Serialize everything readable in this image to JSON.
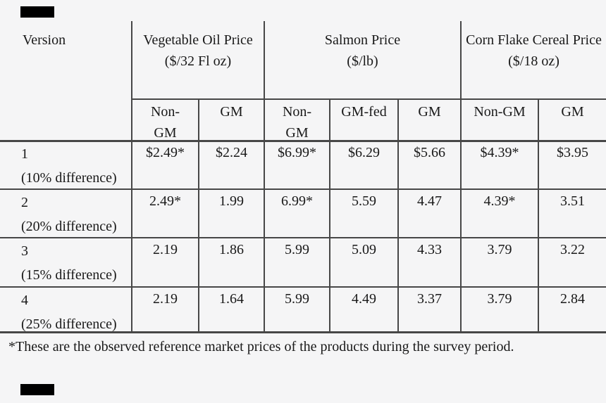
{
  "page": {
    "background": "#f5f5f6",
    "text_color": "#191919",
    "line_color": "#474747",
    "mark_color": "#000000"
  },
  "table": {
    "col_groups": [
      {
        "label": "Version",
        "unit": ""
      },
      {
        "label": "Vegetable Oil Price",
        "unit": "($/32 Fl oz)"
      },
      {
        "label": "Salmon Price",
        "unit": "($/lb)"
      },
      {
        "label": "Corn Flake Cereal Price",
        "unit": "($/18 oz)"
      }
    ],
    "sub_headers": [
      "Non-GM",
      "GM",
      "Non-GM",
      "GM-fed",
      "GM",
      "Non-GM",
      "GM"
    ],
    "rows": [
      {
        "version": "1",
        "difference": "(10% difference)",
        "values": [
          "$2.49*",
          "$2.24",
          "$6.99*",
          "$6.29",
          "$5.66",
          "$4.39*",
          "$3.95"
        ]
      },
      {
        "version": "2",
        "difference": "(20% difference)",
        "values": [
          "2.49*",
          "1.99",
          "6.99*",
          "5.59",
          "4.47",
          "4.39*",
          "3.51"
        ]
      },
      {
        "version": "3",
        "difference": "(15% difference)",
        "values": [
          "2.19",
          "1.86",
          "5.99",
          "5.09",
          "4.33",
          "3.79",
          "3.22"
        ]
      },
      {
        "version": "4",
        "difference": "(25% difference)",
        "values": [
          "2.19",
          "1.64",
          "5.99",
          "4.49",
          "3.37",
          "3.79",
          "2.84"
        ]
      }
    ],
    "footnote": "*These are the observed reference market prices of the products during the survey period."
  }
}
